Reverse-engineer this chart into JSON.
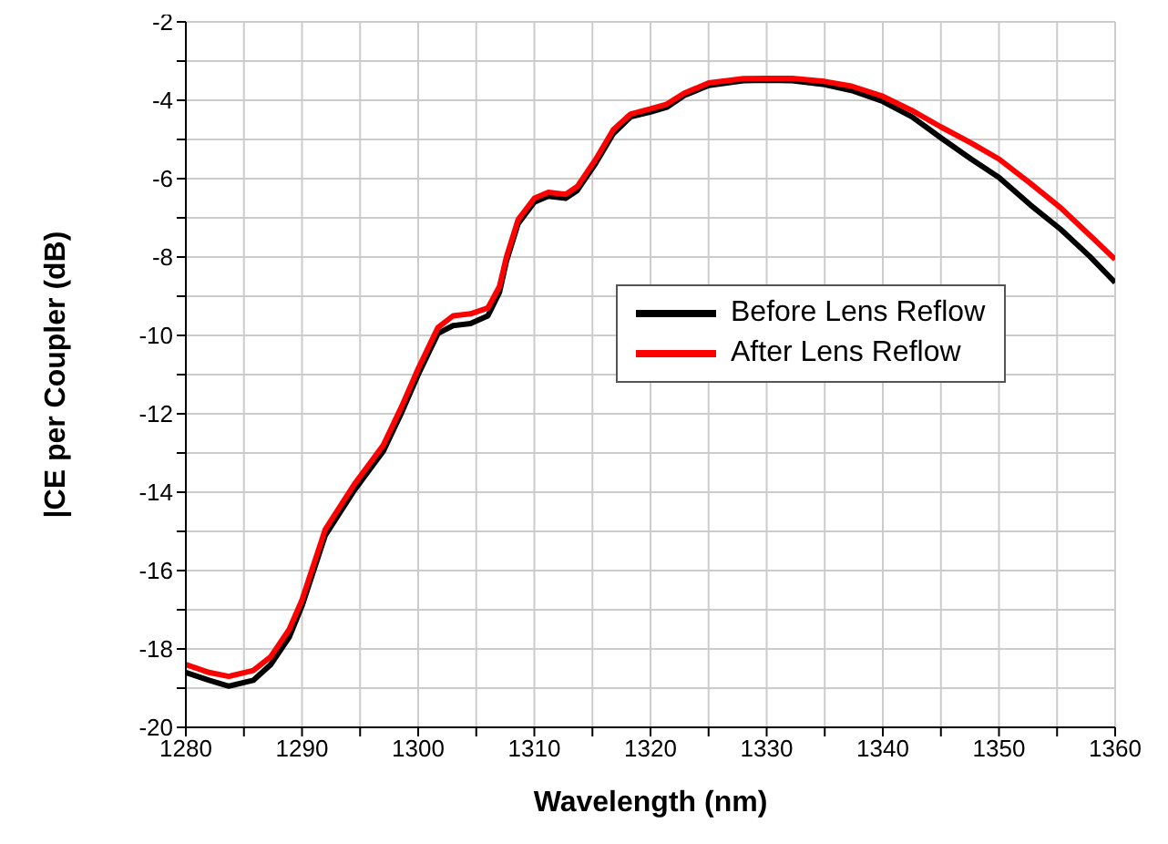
{
  "chart_data": {
    "type": "line",
    "xlabel": "Wavelength (nm)",
    "ylabel": "|CE per Coupler (dB)",
    "x": [
      1280,
      1282,
      1283.7,
      1285.8,
      1287.3,
      1288.9,
      1290,
      1292,
      1294.5,
      1297,
      1298.6,
      1300,
      1301.7,
      1303,
      1304.5,
      1306,
      1307,
      1307.6,
      1308.6,
      1310,
      1311.2,
      1312.7,
      1313.7,
      1315.3,
      1316.8,
      1318.3,
      1320,
      1321.4,
      1322.9,
      1325,
      1328,
      1330,
      1332.2,
      1335,
      1337.3,
      1340,
      1342.5,
      1345,
      1347.6,
      1350,
      1352.7,
      1355.3,
      1357.8,
      1360
    ],
    "series": [
      {
        "name": "Before Lens Reflow",
        "color": "#000000",
        "values": [
          -18.6,
          -18.8,
          -18.95,
          -18.8,
          -18.4,
          -17.7,
          -16.9,
          -15.1,
          -13.95,
          -12.95,
          -11.95,
          -11.0,
          -9.95,
          -9.75,
          -9.7,
          -9.5,
          -8.9,
          -8.1,
          -7.15,
          -6.6,
          -6.45,
          -6.5,
          -6.3,
          -5.6,
          -4.85,
          -4.42,
          -4.3,
          -4.18,
          -3.88,
          -3.62,
          -3.5,
          -3.49,
          -3.5,
          -3.6,
          -3.75,
          -4.03,
          -4.42,
          -4.96,
          -5.5,
          -5.97,
          -6.67,
          -7.29,
          -7.98,
          -8.65
        ]
      },
      {
        "name": "After Lens Reflow",
        "color": "#ff0000",
        "values": [
          -18.4,
          -18.6,
          -18.7,
          -18.55,
          -18.2,
          -17.5,
          -16.75,
          -14.95,
          -13.8,
          -12.8,
          -11.8,
          -10.85,
          -9.8,
          -9.5,
          -9.45,
          -9.3,
          -8.75,
          -8.0,
          -7.05,
          -6.5,
          -6.35,
          -6.4,
          -6.2,
          -5.5,
          -4.75,
          -4.35,
          -4.22,
          -4.1,
          -3.82,
          -3.56,
          -3.45,
          -3.44,
          -3.44,
          -3.52,
          -3.64,
          -3.9,
          -4.26,
          -4.68,
          -5.09,
          -5.5,
          -6.12,
          -6.74,
          -7.44,
          -8.06
        ]
      }
    ],
    "xlim": [
      1280,
      1360
    ],
    "xticks": [
      1280,
      {
        "value": 1285,
        "label": null
      },
      1290,
      {
        "value": 1295,
        "label": null
      },
      1300,
      {
        "value": 1305,
        "label": null
      },
      1310,
      {
        "value": 1315,
        "label": null
      },
      1320,
      {
        "value": 1325,
        "label": null
      },
      1330,
      {
        "value": 1335,
        "label": null
      },
      1340,
      {
        "value": 1345,
        "label": null
      },
      1350,
      {
        "value": 1355,
        "label": null
      },
      1360
    ],
    "ylim": [
      -20,
      -2
    ],
    "yticks": [
      -20,
      {
        "value": -19,
        "label": null
      },
      -18,
      {
        "value": -17,
        "label": null
      },
      -16,
      {
        "value": -15,
        "label": null
      },
      -14,
      {
        "value": -13,
        "label": null
      },
      -12,
      {
        "value": -11,
        "label": null
      },
      -10,
      {
        "value": -9,
        "label": null
      },
      -8,
      {
        "value": -7,
        "label": null
      },
      -6,
      {
        "value": -5,
        "label": null
      },
      -4,
      {
        "value": -3,
        "label": null
      },
      -2
    ],
    "grid": true,
    "legend": "right",
    "marker": "none",
    "line_style": "solid"
  }
}
